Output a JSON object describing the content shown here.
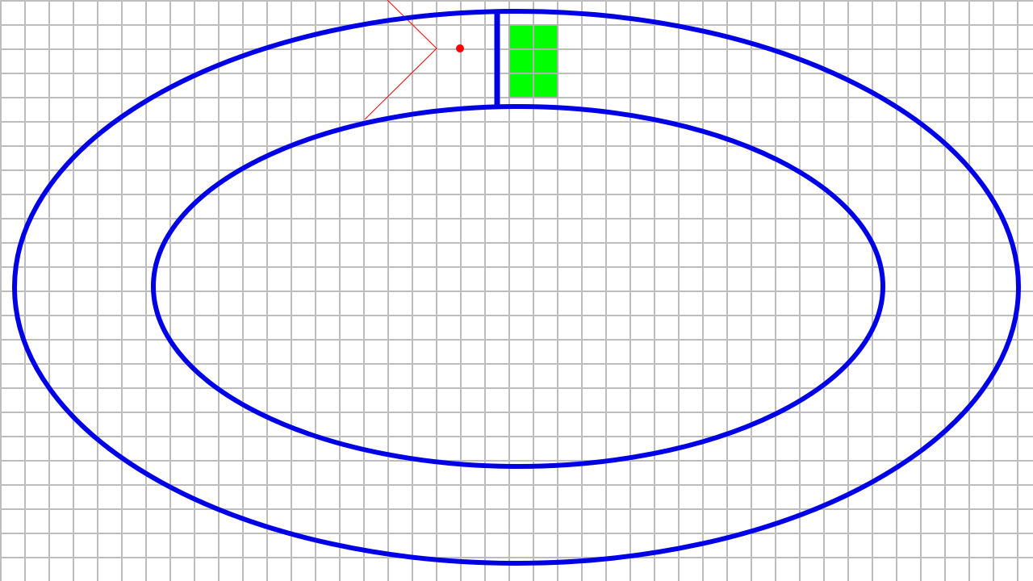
{
  "canvas": {
    "background": "#ffffff"
  },
  "grid": {
    "visible": true,
    "color": "#bdbdbd"
  },
  "track": {
    "color": "#0000e6",
    "shape": "oval-ring"
  },
  "finish_line": {
    "color": "#0000e6"
  },
  "target_zone": {
    "color": "#00ff00",
    "border_color": "#b0b0b0",
    "cells": 6
  },
  "player": {
    "color": "#ff0000",
    "shape": "dot"
  },
  "move_cone": {
    "color": "#ff0000"
  }
}
